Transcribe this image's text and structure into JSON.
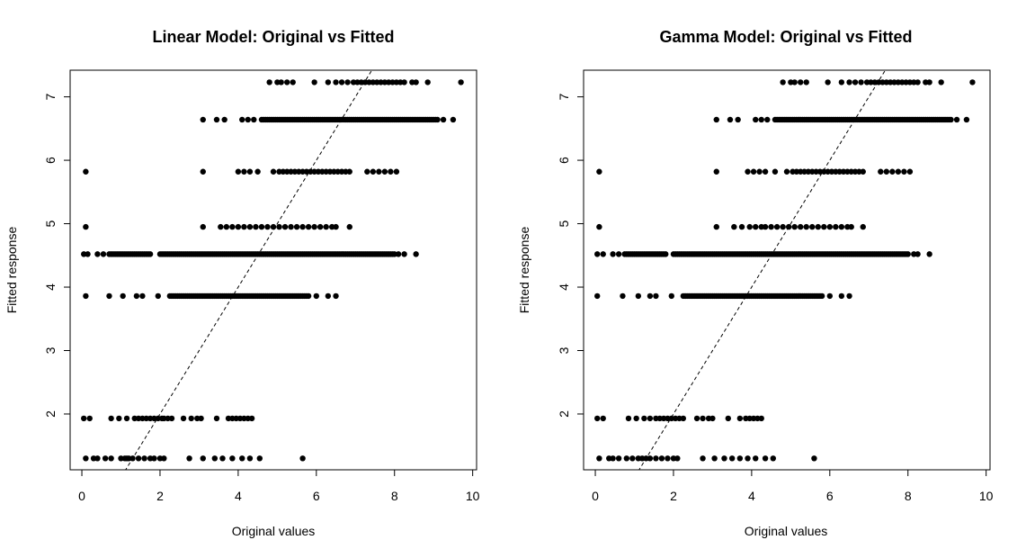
{
  "chart_data": [
    {
      "type": "scatter",
      "title": "Linear Model: Original vs Fitted",
      "xlabel": "Original values",
      "ylabel": "Fitted response",
      "xlim": [
        -0.3,
        10.1
      ],
      "ylim": [
        1.12,
        7.42
      ],
      "xticks": [
        0,
        2,
        4,
        6,
        8,
        10
      ],
      "yticks": [
        2,
        3,
        4,
        5,
        6,
        7
      ],
      "grid": false,
      "reference_line": {
        "style": "dashed",
        "points": [
          [
            1.1,
            1.1
          ],
          [
            7.5,
            7.5
          ]
        ]
      },
      "bands": [
        {
          "y": 1.3,
          "x": [
            0.1,
            0.3,
            0.4,
            0.6,
            0.75,
            1.0,
            1.1,
            1.15,
            1.2,
            1.3,
            1.45,
            1.6,
            1.75,
            1.85,
            2.0,
            2.1,
            2.75,
            3.1,
            3.4,
            3.6,
            3.85,
            4.1,
            4.3,
            4.55,
            5.65
          ]
        },
        {
          "y": 1.93,
          "x": [
            0.05,
            0.2,
            0.75,
            0.95,
            1.15,
            1.35,
            1.45,
            1.55,
            1.65,
            1.75,
            1.85,
            1.95,
            2.05,
            2.1,
            2.2,
            2.3,
            2.6,
            2.8,
            2.95,
            3.05,
            3.45,
            3.75,
            3.85,
            3.95,
            4.05,
            4.15,
            4.25,
            4.35
          ]
        },
        {
          "y": 3.86,
          "x": [
            0.1,
            0.7,
            1.05,
            1.4,
            1.55,
            1.95
          ],
          "runs": [
            [
              2.25,
              5.8
            ]
          ],
          "extra": [
            6.0,
            6.3,
            6.5
          ]
        },
        {
          "y": 4.52,
          "x": [
            0.05,
            0.15,
            0.4,
            0.55
          ],
          "runs": [
            [
              0.7,
              1.75
            ],
            [
              2.0,
              8.0
            ]
          ],
          "extra": [
            8.1,
            8.25,
            8.55
          ]
        },
        {
          "y": 4.95,
          "x": [
            0.1,
            3.1,
            3.55,
            3.7,
            3.85,
            4.0,
            4.15,
            4.3,
            4.45,
            4.6,
            4.75,
            4.9,
            5.05,
            5.2,
            5.35,
            5.5,
            5.65,
            5.8,
            5.95,
            6.1,
            6.25,
            6.4,
            6.5,
            6.85
          ]
        },
        {
          "y": 5.82,
          "x": [
            0.1,
            3.1,
            4.0,
            4.15,
            4.3,
            4.5,
            4.9,
            5.05,
            5.15,
            5.25,
            5.35,
            5.45,
            5.55,
            5.65,
            5.75,
            5.85,
            5.95,
            6.05,
            6.15,
            6.25,
            6.35,
            6.45,
            6.55,
            6.65,
            6.75,
            6.85,
            7.3,
            7.45,
            7.6,
            7.75,
            7.9,
            8.05
          ]
        },
        {
          "y": 6.64,
          "x": [
            3.1,
            3.45,
            3.65,
            4.1,
            4.25,
            4.4
          ],
          "runs": [
            [
              4.6,
              9.1
            ]
          ],
          "extra": [
            9.25,
            9.5
          ]
        },
        {
          "y": 7.23,
          "x": [
            4.8,
            5.0,
            5.1,
            5.25,
            5.4,
            5.95,
            6.3,
            6.5,
            6.65,
            6.8,
            6.95,
            7.05,
            7.15,
            7.25,
            7.35,
            7.45,
            7.55,
            7.65,
            7.75,
            7.85,
            7.95,
            8.05,
            8.15,
            8.25,
            8.45,
            8.55,
            8.85,
            9.7
          ]
        }
      ]
    },
    {
      "type": "scatter",
      "title": "Gamma Model: Original vs Fitted",
      "xlabel": "Original values",
      "ylabel": "Fitted response",
      "xlim": [
        -0.3,
        10.1
      ],
      "ylim": [
        1.12,
        7.42
      ],
      "xticks": [
        0,
        2,
        4,
        6,
        8,
        10
      ],
      "yticks": [
        2,
        3,
        4,
        5,
        6,
        7
      ],
      "grid": false,
      "reference_line": {
        "style": "dashed",
        "points": [
          [
            1.1,
            1.1
          ],
          [
            7.5,
            7.5
          ]
        ]
      },
      "bands": [
        {
          "y": 1.3,
          "x": [
            0.1,
            0.35,
            0.45,
            0.6,
            0.8,
            0.95,
            1.1,
            1.2,
            1.3,
            1.4,
            1.55,
            1.7,
            1.85,
            2.0,
            2.1,
            2.75,
            3.05,
            3.3,
            3.5,
            3.7,
            3.9,
            4.1,
            4.35,
            4.55,
            5.6
          ]
        },
        {
          "y": 1.93,
          "x": [
            0.05,
            0.2,
            0.85,
            1.05,
            1.25,
            1.4,
            1.55,
            1.65,
            1.75,
            1.85,
            1.95,
            2.05,
            2.15,
            2.25,
            2.6,
            2.75,
            2.9,
            3.0,
            3.4,
            3.7,
            3.85,
            3.95,
            4.05,
            4.15,
            4.25
          ]
        },
        {
          "y": 3.86,
          "x": [
            0.05,
            0.7,
            1.1,
            1.4,
            1.55,
            1.95
          ],
          "runs": [
            [
              2.25,
              5.8
            ]
          ],
          "extra": [
            6.0,
            6.3,
            6.5
          ]
        },
        {
          "y": 4.52,
          "x": [
            0.05,
            0.2,
            0.45,
            0.6
          ],
          "runs": [
            [
              0.75,
              1.8
            ],
            [
              2.0,
              8.0
            ]
          ],
          "extra": [
            8.15,
            8.25,
            8.55
          ]
        },
        {
          "y": 4.95,
          "x": [
            0.1,
            3.1,
            3.55,
            3.75,
            3.95,
            4.1,
            4.25,
            4.35,
            4.5,
            4.65,
            4.8,
            4.95,
            5.1,
            5.25,
            5.4,
            5.55,
            5.7,
            5.85,
            6.0,
            6.15,
            6.3,
            6.45,
            6.55,
            6.85
          ]
        },
        {
          "y": 5.82,
          "x": [
            0.1,
            3.1,
            3.9,
            4.05,
            4.2,
            4.35,
            4.6,
            4.9,
            5.05,
            5.15,
            5.25,
            5.35,
            5.45,
            5.55,
            5.65,
            5.75,
            5.85,
            5.95,
            6.05,
            6.15,
            6.25,
            6.35,
            6.45,
            6.55,
            6.65,
            6.75,
            6.85,
            7.3,
            7.45,
            7.6,
            7.75,
            7.9,
            8.05
          ]
        },
        {
          "y": 6.64,
          "x": [
            3.1,
            3.45,
            3.65,
            4.1,
            4.25,
            4.4
          ],
          "runs": [
            [
              4.6,
              9.1
            ]
          ],
          "extra": [
            9.25,
            9.5
          ]
        },
        {
          "y": 7.23,
          "x": [
            4.8,
            5.0,
            5.1,
            5.25,
            5.4,
            5.95,
            6.3,
            6.5,
            6.65,
            6.8,
            6.95,
            7.05,
            7.15,
            7.25,
            7.35,
            7.45,
            7.55,
            7.65,
            7.75,
            7.85,
            7.95,
            8.05,
            8.15,
            8.25,
            8.45,
            8.55,
            8.85,
            9.65
          ]
        }
      ]
    }
  ]
}
